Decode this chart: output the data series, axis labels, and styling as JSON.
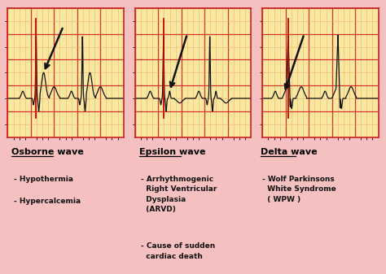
{
  "overall_bg": "#F5C0C0",
  "panel_bg": "#FAE8A0",
  "grid_major_color": "#CC2222",
  "grid_minor_color": "#F0AA66",
  "wave_color": "#111111",
  "arrow_color": "#111111",
  "highlight_color": "#CC0000",
  "title_color": "#000000",
  "text_color": "#111111",
  "panels": [
    {
      "title": "Osborne wave",
      "bullets": [
        "Hypothermia",
        "Hypercalcemia"
      ],
      "wave_type": "osborne"
    },
    {
      "title": "Epsilon wave",
      "bullets": [
        "Arrhythmogenic\nRight Ventricular\nDysplasia\n(ARVD)",
        "Cause of sudden\ncardiac death"
      ],
      "wave_type": "epsilon"
    },
    {
      "title": "Delta wave",
      "bullets": [
        "Wolf Parkinsons\nWhite Syndrome\n( WPW )"
      ],
      "wave_type": "delta"
    }
  ]
}
